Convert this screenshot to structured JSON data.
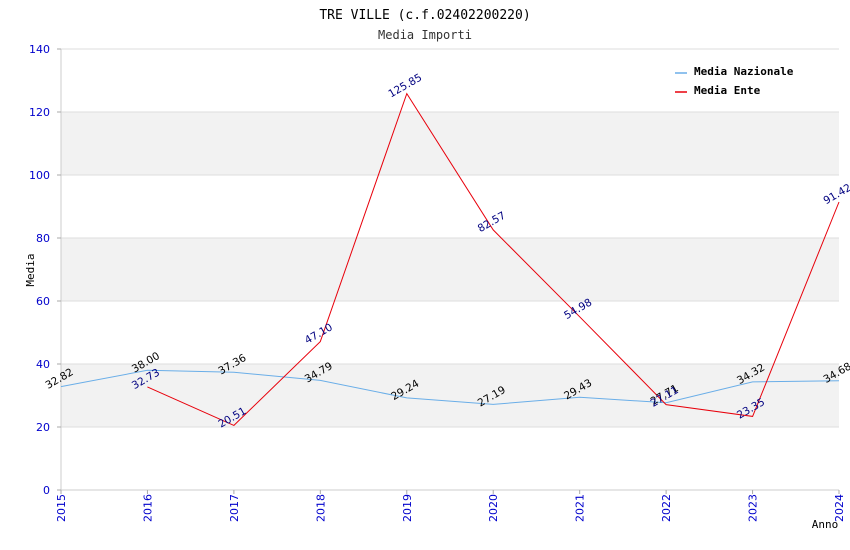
{
  "chart_data": {
    "type": "line",
    "title": "TRE VILLE (c.f.02402200220)",
    "subtitle": "Media Importi",
    "xlabel": "Anno",
    "ylabel": "Media",
    "ylim": [
      0,
      140
    ],
    "yticks": [
      0,
      20,
      40,
      60,
      80,
      100,
      120,
      140
    ],
    "categories": [
      "2015",
      "2016",
      "2017",
      "2018",
      "2019",
      "2020",
      "2021",
      "2022",
      "2023",
      "2024"
    ],
    "series": [
      {
        "name": "Media Nazionale",
        "color": "#6aaee8",
        "label_color": "#000000",
        "values": [
          32.82,
          38.0,
          37.36,
          34.79,
          29.24,
          27.19,
          29.43,
          27.71,
          34.32,
          34.68
        ],
        "labels": [
          "32.82",
          "38.00",
          "37.36",
          "34.79",
          "29.24",
          "27.19",
          "29.43",
          "27.71",
          "34.32",
          "34.68"
        ]
      },
      {
        "name": "Media Ente",
        "color": "#e8000b",
        "label_color": "#000080",
        "values": [
          null,
          32.73,
          20.51,
          47.1,
          125.85,
          82.57,
          54.98,
          27.11,
          23.35,
          91.42
        ],
        "labels": [
          null,
          "32.73",
          "20.51",
          "47.10",
          "125.85",
          "82.57",
          "54.98",
          "27.11",
          "23.35",
          "91.42"
        ]
      }
    ],
    "legend_position": "top-right",
    "grid": true
  }
}
